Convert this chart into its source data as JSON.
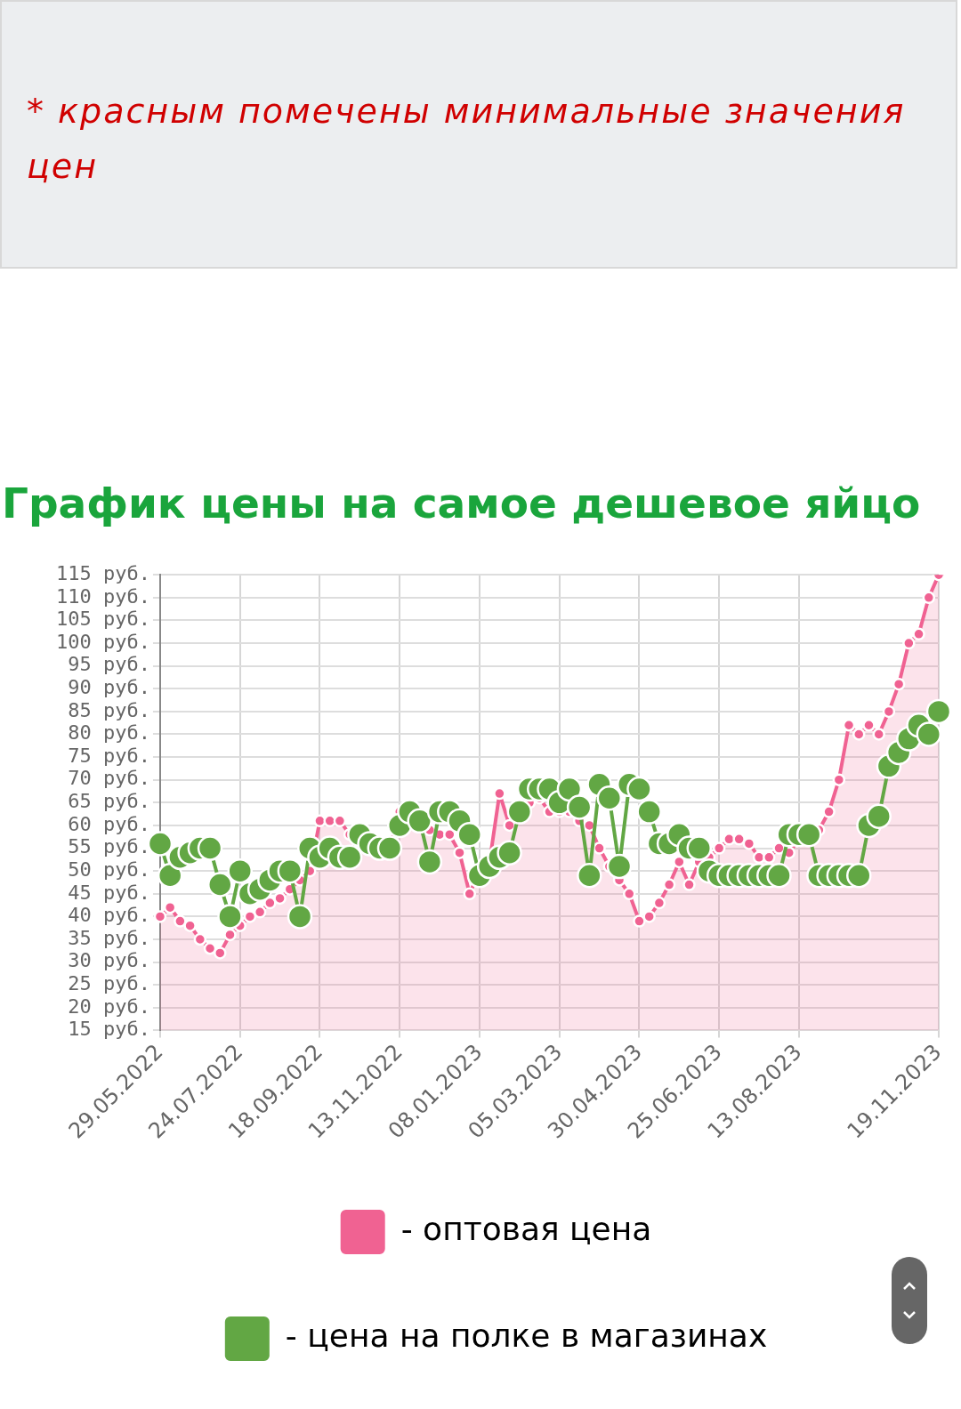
{
  "chart_data": {
    "type": "line",
    "title": "График цены на самое дешевое яйцо",
    "annotations": [
      "* красным помечены минимальные значения цен"
    ],
    "categories": [
      "29.05.2022",
      null,
      null,
      null,
      null,
      null,
      null,
      null,
      "24.07.2022",
      null,
      null,
      null,
      null,
      null,
      null,
      null,
      "18.09.2022",
      null,
      null,
      null,
      null,
      null,
      null,
      null,
      "13.11.2022",
      null,
      null,
      null,
      null,
      null,
      null,
      null,
      "08.01.2023",
      null,
      null,
      null,
      null,
      null,
      null,
      null,
      "05.03.2023",
      null,
      null,
      null,
      null,
      null,
      null,
      null,
      "30.04.2023",
      null,
      null,
      null,
      null,
      null,
      null,
      null,
      "25.06.2023",
      null,
      null,
      null,
      null,
      null,
      null,
      null,
      "13.08.2023",
      null,
      null,
      null,
      null,
      null,
      null,
      null,
      null,
      null,
      null,
      null,
      null,
      null,
      "19.11.2023"
    ],
    "series": [
      {
        "name": "- оптовая цена",
        "type": "area",
        "color": "#f06292",
        "values": [
          40,
          42,
          39,
          38,
          35,
          33,
          32,
          36,
          38,
          40,
          41,
          43,
          44,
          46,
          48,
          50,
          61,
          61,
          61,
          58,
          58,
          56,
          55,
          55,
          63,
          63,
          60,
          59,
          58,
          58,
          54,
          45,
          50,
          52,
          67,
          60,
          63,
          65,
          66,
          63,
          63,
          63,
          61,
          60,
          55,
          51,
          48,
          45,
          39,
          40,
          43,
          47,
          52,
          47,
          52,
          53,
          55,
          57,
          57,
          56,
          53,
          53,
          55,
          54,
          57,
          57,
          59,
          63,
          70,
          82,
          80,
          82,
          80,
          85,
          91,
          100,
          102,
          110,
          115
        ]
      },
      {
        "name": "- цена на полке в магазинах",
        "type": "line",
        "color": "#62a744",
        "values": [
          56,
          49,
          53,
          54,
          55,
          55,
          47,
          40,
          50,
          45,
          46,
          48,
          50,
          50,
          40,
          55,
          53,
          55,
          53,
          53,
          58,
          56,
          55,
          55,
          60,
          63,
          61,
          52,
          63,
          63,
          61,
          58,
          49,
          51,
          53,
          54,
          63,
          68,
          68,
          68,
          65,
          68,
          64,
          49,
          69,
          66,
          51,
          69,
          68,
          63,
          56,
          56,
          58,
          55,
          55,
          50,
          49,
          49,
          49,
          49,
          49,
          49,
          49,
          58,
          58,
          58,
          49,
          49,
          49,
          49,
          49,
          60,
          62,
          73,
          76,
          79,
          82,
          80,
          85
        ]
      }
    ],
    "ylim": [
      15,
      115
    ],
    "yticks": [
      {
        "value": 15,
        "label": "15 руб."
      },
      {
        "value": 20,
        "label": "20 руб."
      },
      {
        "value": 25,
        "label": "25 руб."
      },
      {
        "value": 30,
        "label": "30 руб."
      },
      {
        "value": 35,
        "label": "35 руб."
      },
      {
        "value": 40,
        "label": "40 руб."
      },
      {
        "value": 45,
        "label": "45 руб."
      },
      {
        "value": 50,
        "label": "50 руб."
      },
      {
        "value": 55,
        "label": "55 руб."
      },
      {
        "value": 60,
        "label": "60 руб."
      },
      {
        "value": 65,
        "label": "65 руб."
      },
      {
        "value": 70,
        "label": "70 руб."
      },
      {
        "value": 75,
        "label": "75 руб."
      },
      {
        "value": 80,
        "label": "80 руб."
      },
      {
        "value": 85,
        "label": "85 руб."
      },
      {
        "value": 90,
        "label": "90 руб."
      },
      {
        "value": 95,
        "label": "95 руб."
      },
      {
        "value": 100,
        "label": "100 руб."
      },
      {
        "value": 105,
        "label": "105 руб."
      },
      {
        "value": 110,
        "label": "110 руб."
      },
      {
        "value": 115,
        "label": "115 руб."
      }
    ],
    "grid": true,
    "legend": "bottom",
    "marker": "circle",
    "line_style": "solid"
  }
}
